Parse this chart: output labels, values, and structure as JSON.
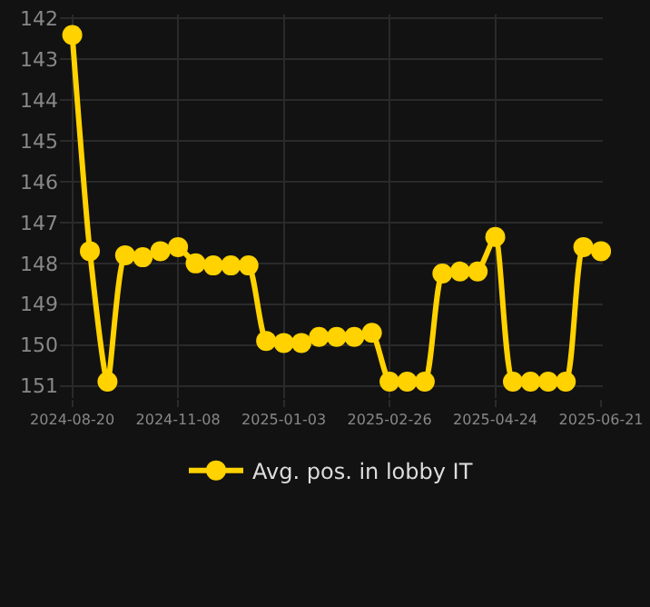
{
  "chart_data": {
    "type": "line",
    "categories": [
      "2024-08-20",
      null,
      null,
      null,
      null,
      null,
      "2024-11-08",
      null,
      null,
      null,
      null,
      null,
      "2025-01-03",
      null,
      null,
      null,
      null,
      null,
      "2025-02-26",
      null,
      null,
      null,
      null,
      null,
      "2025-04-24",
      null,
      null,
      null,
      null,
      null,
      "2025-06-21"
    ],
    "series": [
      {
        "name": "Avg. pos. in lobby IT",
        "color": "#ffd200",
        "values": [
          142.4,
          147.7,
          150.9,
          147.8,
          147.85,
          147.7,
          147.6,
          148.0,
          148.05,
          148.05,
          148.05,
          149.9,
          149.95,
          149.95,
          149.8,
          149.8,
          149.8,
          149.7,
          150.9,
          150.9,
          150.9,
          148.25,
          148.2,
          148.2,
          147.35,
          150.9,
          150.9,
          150.9,
          150.9,
          147.6,
          147.7
        ]
      }
    ],
    "ylim": [
      151.3,
      141.9
    ],
    "yticks": [
      142,
      143,
      144,
      145,
      146,
      147,
      148,
      149,
      150,
      151
    ],
    "grid": true,
    "legend": "bottom",
    "marker": "circle",
    "line_style": "solid"
  }
}
